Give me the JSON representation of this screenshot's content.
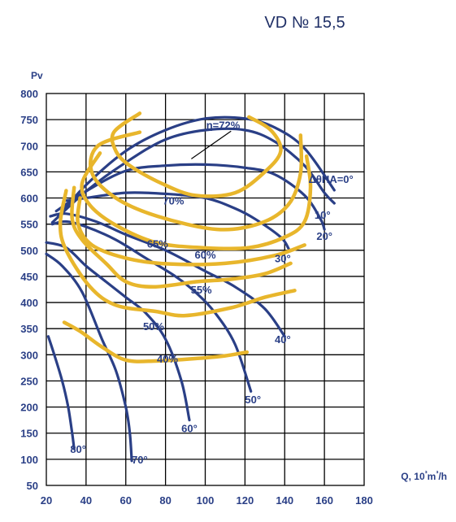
{
  "chart_data": {
    "type": "line",
    "title": "VD № 15,5",
    "ylabel": "Pv",
    "xlabel": "Q, 10³m³/h",
    "xlim": [
      20,
      180
    ],
    "ylim": [
      50,
      800
    ],
    "x_ticks": [
      "20",
      "40",
      "60",
      "80",
      "100",
      "120",
      "140",
      "160",
      "180"
    ],
    "y_ticks": [
      "50",
      "100",
      "150",
      "200",
      "250",
      "300",
      "350",
      "400",
      "450",
      "500",
      "550",
      "600",
      "650",
      "700",
      "750",
      "800"
    ],
    "grid": true,
    "colors": {
      "blade_curves": "#2a3f86",
      "efficiency_curves": "#e8b62c",
      "text": "#2a3f86"
    },
    "blade_angle_curves": [
      {
        "label": "ΔθHA=0°",
        "label_at": [
          152,
          637
        ],
        "points": [
          [
            26,
            565
          ],
          [
            40,
            625
          ],
          [
            60,
            690
          ],
          [
            80,
            730
          ],
          [
            100,
            752
          ],
          [
            120,
            752
          ],
          [
            135,
            735
          ],
          [
            150,
            695
          ],
          [
            165,
            615
          ]
        ]
      },
      {
        "label": "10°",
        "label_at": [
          155,
          568
        ],
        "points": [
          [
            23,
            553
          ],
          [
            40,
            613
          ],
          [
            60,
            668
          ],
          [
            80,
            712
          ],
          [
            100,
            730
          ],
          [
            120,
            730
          ],
          [
            135,
            708
          ],
          [
            150,
            662
          ],
          [
            160,
            610
          ],
          [
            165,
            590
          ]
        ]
      },
      {
        "label": "20°",
        "label_at": [
          156,
          528
        ],
        "points": [
          [
            25,
            575
          ],
          [
            40,
            613
          ],
          [
            60,
            652
          ],
          [
            80,
            662
          ],
          [
            100,
            664
          ],
          [
            120,
            658
          ],
          [
            135,
            645
          ],
          [
            150,
            605
          ],
          [
            158,
            560
          ],
          [
            160,
            540
          ]
        ]
      },
      {
        "label": "30°",
        "label_at": [
          135,
          485
        ],
        "points": [
          [
            30,
            595
          ],
          [
            40,
            600
          ],
          [
            60,
            610
          ],
          [
            80,
            608
          ],
          [
            100,
            600
          ],
          [
            115,
            580
          ],
          [
            125,
            560
          ],
          [
            138,
            525
          ],
          [
            142,
            503
          ]
        ]
      },
      {
        "label": "40°",
        "label_at": [
          135,
          330
        ],
        "points": [
          [
            22,
            565
          ],
          [
            30,
            570
          ],
          [
            45,
            555
          ],
          [
            60,
            530
          ],
          [
            80,
            500
          ],
          [
            100,
            460
          ],
          [
            115,
            430
          ],
          [
            130,
            388
          ],
          [
            140,
            335
          ]
        ]
      },
      {
        "label": "50°",
        "label_at": [
          120,
          215
        ],
        "points": [
          [
            23,
            550
          ],
          [
            30,
            555
          ],
          [
            40,
            545
          ],
          [
            55,
            520
          ],
          [
            70,
            485
          ],
          [
            85,
            450
          ],
          [
            95,
            420
          ],
          [
            105,
            380
          ],
          [
            115,
            320
          ],
          [
            123,
            230
          ]
        ]
      },
      {
        "label": "60°",
        "label_at": [
          88,
          160
        ],
        "points": [
          [
            20,
            515
          ],
          [
            30,
            505
          ],
          [
            40,
            470
          ],
          [
            50,
            440
          ],
          [
            60,
            410
          ],
          [
            70,
            380
          ],
          [
            80,
            330
          ],
          [
            88,
            250
          ],
          [
            92,
            175
          ]
        ]
      },
      {
        "label": "70°",
        "label_at": [
          63,
          100
        ],
        "points": [
          [
            20,
            493
          ],
          [
            28,
            470
          ],
          [
            38,
            420
          ],
          [
            48,
            330
          ],
          [
            55,
            270
          ],
          [
            60,
            200
          ],
          [
            62,
            152
          ],
          [
            63,
            97
          ]
        ]
      },
      {
        "label": "80°",
        "label_at": [
          32,
          120
        ],
        "points": [
          [
            21,
            335
          ],
          [
            24,
            300
          ],
          [
            28,
            250
          ],
          [
            31,
            200
          ],
          [
            33,
            150
          ],
          [
            34,
            120
          ]
        ]
      }
    ],
    "efficiency_curves": [
      {
        "label": "η=72%",
        "label_at": [
          109,
          740
        ],
        "pointer": [
          [
            113,
            728
          ],
          [
            93,
            675
          ]
        ],
        "points": [
          [
            67,
            762
          ],
          [
            54,
            726
          ],
          [
            55,
            690
          ],
          [
            62,
            662
          ],
          [
            78,
            628
          ],
          [
            95,
            605
          ],
          [
            115,
            610
          ],
          [
            130,
            650
          ],
          [
            138,
            690
          ],
          [
            133,
            730
          ],
          [
            122,
            755
          ]
        ]
      },
      {
        "label": "70%",
        "label_at": [
          84,
          595
        ],
        "points": [
          [
            67,
            726
          ],
          [
            46,
            700
          ],
          [
            43,
            648
          ],
          [
            55,
            600
          ],
          [
            76,
            565
          ],
          [
            106,
            540
          ],
          [
            128,
            552
          ],
          [
            142,
            588
          ],
          [
            148,
            648
          ],
          [
            148,
            720
          ]
        ]
      },
      {
        "label": "65%",
        "label_at": [
          76,
          513
        ],
        "points": [
          [
            47,
            686
          ],
          [
            38,
            628
          ],
          [
            42,
            586
          ],
          [
            55,
            548
          ],
          [
            75,
            515
          ],
          [
            98,
            505
          ],
          [
            122,
            505
          ],
          [
            140,
            525
          ],
          [
            150,
            555
          ],
          [
            153,
            620
          ],
          [
            151,
            680
          ]
        ]
      },
      {
        "label": "60%",
        "label_at": [
          100,
          492
        ],
        "points": [
          [
            37,
            600
          ],
          [
            36,
            550
          ],
          [
            43,
            510
          ],
          [
            60,
            485
          ],
          [
            81,
            474
          ],
          [
            110,
            475
          ],
          [
            135,
            490
          ],
          [
            150,
            510
          ]
        ]
      },
      {
        "label": "55%",
        "label_at": [
          98,
          425
        ],
        "points": [
          [
            34,
            620
          ],
          [
            33,
            560
          ],
          [
            38,
            520
          ],
          [
            50,
            475
          ],
          [
            60,
            440
          ],
          [
            74,
            430
          ],
          [
            96,
            440
          ],
          [
            114,
            445
          ],
          [
            130,
            455
          ],
          [
            143,
            475
          ]
        ]
      },
      {
        "label": "50%",
        "label_at": [
          74,
          355
        ],
        "points": [
          [
            30,
            614
          ],
          [
            27,
            550
          ],
          [
            30,
            500
          ],
          [
            42,
            430
          ],
          [
            55,
            395
          ],
          [
            75,
            383
          ],
          [
            90,
            375
          ],
          [
            113,
            390
          ],
          [
            130,
            410
          ],
          [
            145,
            423
          ]
        ]
      },
      {
        "label": "40%",
        "label_at": [
          81,
          293
        ],
        "points": [
          [
            29,
            362
          ],
          [
            37,
            345
          ],
          [
            48,
            315
          ],
          [
            60,
            290
          ],
          [
            75,
            288
          ],
          [
            96,
            293
          ],
          [
            110,
            298
          ],
          [
            121,
            305
          ]
        ]
      }
    ]
  }
}
